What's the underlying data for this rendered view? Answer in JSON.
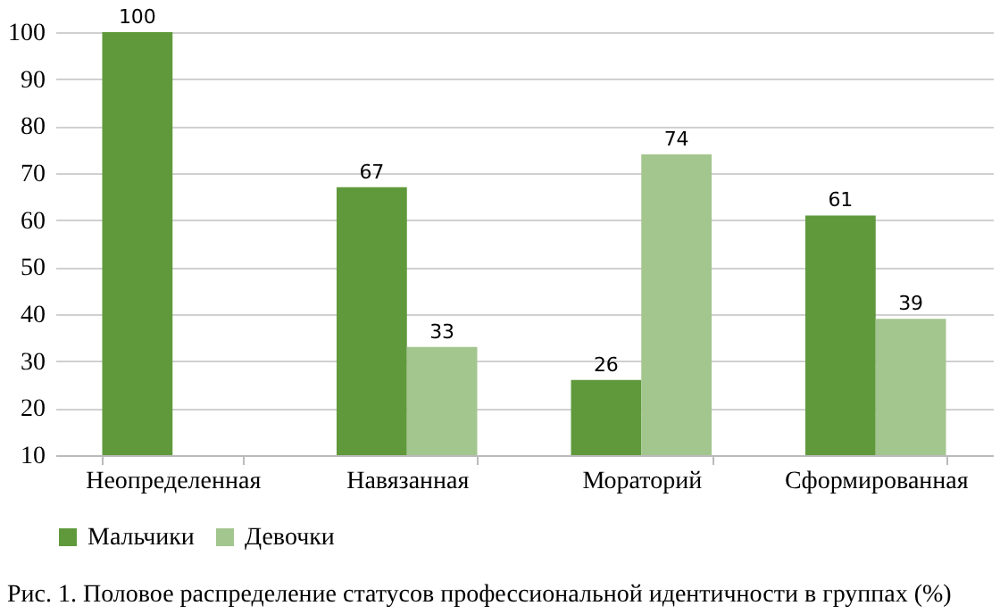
{
  "chart_data": {
    "type": "bar",
    "categories": [
      "Неопределенная",
      "Навязанная",
      "Мораторий",
      "Сформированная"
    ],
    "series": [
      {
        "name": "Мальчики",
        "color": "#5f993c",
        "values": [
          100,
          67,
          26,
          61
        ]
      },
      {
        "name": "Девочки",
        "color": "#a3c58e",
        "values": [
          null,
          33,
          74,
          39
        ]
      }
    ],
    "ylim": [
      10,
      100
    ],
    "yticks": [
      10,
      20,
      30,
      40,
      50,
      60,
      70,
      80,
      90,
      100
    ],
    "grid": "y",
    "legend": "bottom",
    "data_labels": true,
    "annotations": [
      "Рис. 1. Половое распределение статусов профессиональной идентичности в группах (%)"
    ]
  }
}
